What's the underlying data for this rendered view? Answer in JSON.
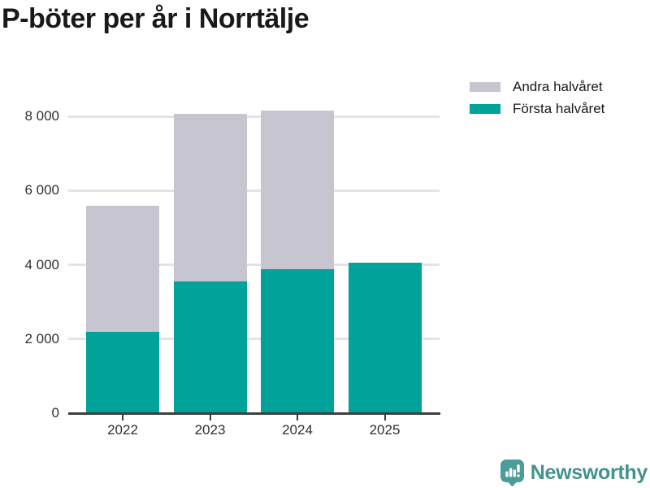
{
  "chart_data": {
    "type": "bar",
    "stacked": true,
    "title": "P-böter per år i Norrtälje",
    "categories": [
      "2022",
      "2023",
      "2024",
      "2025"
    ],
    "series": [
      {
        "name": "Första halvåret",
        "color": "#00a29a",
        "values": [
          2200,
          3560,
          3870,
          4060
        ]
      },
      {
        "name": "Andra halvåret",
        "color": "#c7c6d0",
        "values": [
          3400,
          4500,
          4290,
          0
        ]
      }
    ],
    "totals": [
      5600,
      8060,
      8160,
      4060
    ],
    "ylim": [
      0,
      8200
    ],
    "yticks": [
      0,
      2000,
      4000,
      6000,
      8000
    ],
    "ytick_labels": [
      "0",
      "2 000",
      "4 000",
      "6 000",
      "8 000"
    ],
    "xlabel": "",
    "ylabel": "",
    "grid": true,
    "legend_position": "top-right",
    "legend_order": [
      "Andra halvåret",
      "Första halvåret"
    ]
  },
  "colors": {
    "grid": "#e4e4e7",
    "axis": "#3e3e3e",
    "text": "#303030",
    "title": "#191919",
    "brand": "#43928e"
  },
  "branding": {
    "name": "Newsworthy"
  }
}
